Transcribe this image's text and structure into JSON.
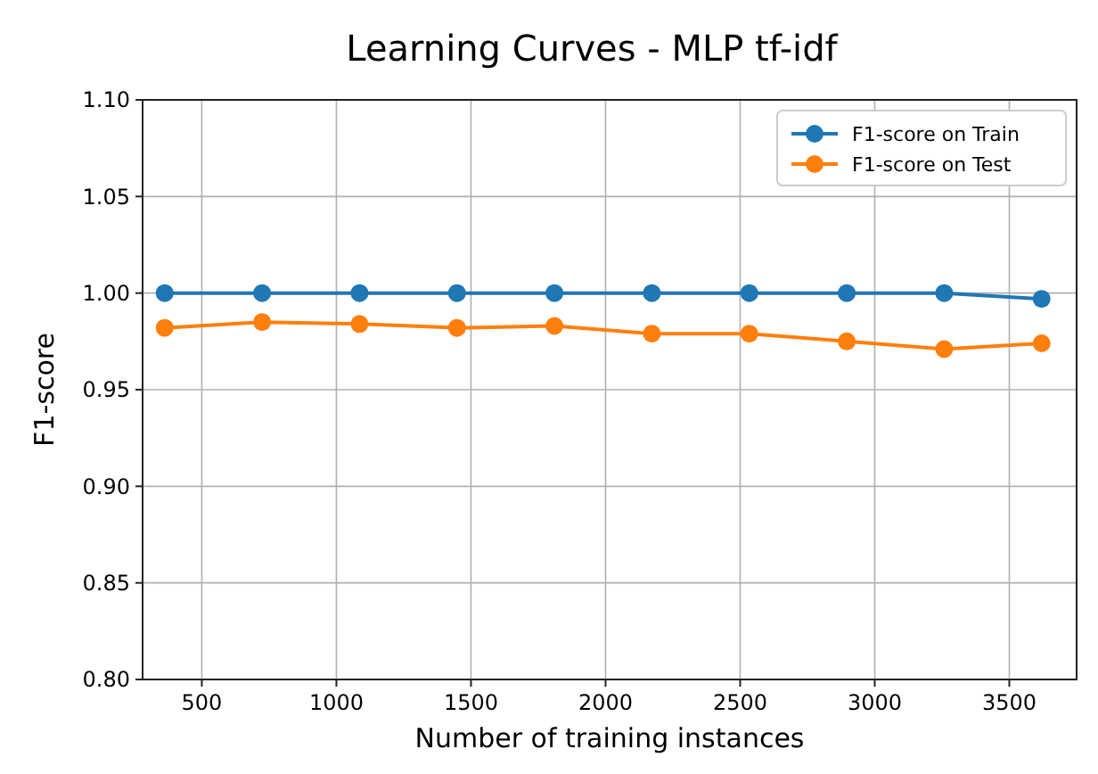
{
  "chart_data": {
    "type": "line",
    "title": "Learning Curves - MLP tf-idf",
    "xlabel": "Number of training instances",
    "ylabel": "F1-score",
    "x": [
      362,
      724,
      1086,
      1448,
      1810,
      2172,
      2534,
      2896,
      3258,
      3620
    ],
    "series": [
      {
        "name": "F1-score on Train",
        "color": "#1f77b4",
        "values": [
          1.0,
          1.0,
          1.0,
          1.0,
          1.0,
          1.0,
          1.0,
          1.0,
          1.0,
          0.997
        ]
      },
      {
        "name": "F1-score on Test",
        "color": "#ff7f0e",
        "values": [
          0.982,
          0.985,
          0.984,
          0.982,
          0.983,
          0.979,
          0.979,
          0.975,
          0.971,
          0.974
        ]
      }
    ],
    "xlim": [
      280,
      3750
    ],
    "xticks": [
      500,
      1000,
      1500,
      2000,
      2500,
      3000,
      3500
    ],
    "ylim": [
      0.8,
      1.1
    ],
    "yticks": [
      {
        "value": 0.8,
        "label": "0.80"
      },
      {
        "value": 0.85,
        "label": "0.85"
      },
      {
        "value": 0.9,
        "label": "0.90"
      },
      {
        "value": 0.95,
        "label": "0.95"
      },
      {
        "value": 1.0,
        "label": "1.00"
      },
      {
        "value": 1.05,
        "label": "1.05"
      },
      {
        "value": 1.1,
        "label": "1.10"
      }
    ],
    "grid": true,
    "legend": "top right",
    "marker": "circle",
    "line_style": "solid"
  }
}
